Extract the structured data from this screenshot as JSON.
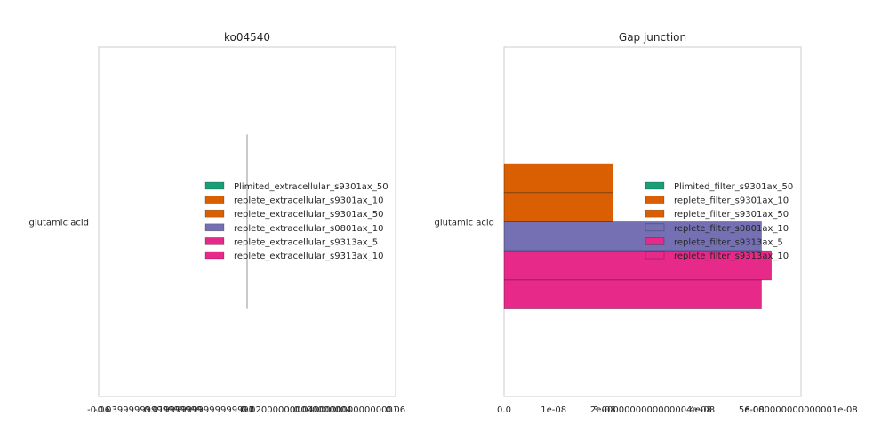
{
  "chart_data": [
    {
      "type": "bar",
      "orientation": "horizontal",
      "title": "ko04540",
      "xlabel": "",
      "ylabel": "",
      "categories": [
        "glutamic acid"
      ],
      "xlim": [
        -0.06,
        0.06
      ],
      "x_tick_labels": [
        "-0.06",
        "-0.03999999999999999",
        "-0.019999999999999997",
        "0.0",
        "0.020000000000000004",
        "0.04000000000000001",
        "0.06"
      ],
      "grid": false,
      "legend_position": "center-right",
      "series": [
        {
          "name": "Plimited_extracellular_s9301ax_50",
          "values": [
            0
          ],
          "color": "#1b9e77"
        },
        {
          "name": "replete_extracellular_s9301ax_10",
          "values": [
            0
          ],
          "color": "#d95f02"
        },
        {
          "name": "replete_extracellular_s9301ax_50",
          "values": [
            0
          ],
          "color": "#d95f02"
        },
        {
          "name": "replete_extracellular_s0801ax_10",
          "values": [
            0
          ],
          "color": "#7570b3"
        },
        {
          "name": "replete_extracellular_s9313ax_5",
          "values": [
            0
          ],
          "color": "#e7298a"
        },
        {
          "name": "replete_extracellular_s9313ax_10",
          "values": [
            0
          ],
          "color": "#e7298a"
        }
      ]
    },
    {
      "type": "bar",
      "orientation": "horizontal",
      "title": "Gap junction",
      "xlabel": "",
      "ylabel": "",
      "categories": [
        "glutamic acid"
      ],
      "xlim": [
        0,
        6e-08
      ],
      "x_tick_labels": [
        "0.0",
        "1e-08",
        "2e-08",
        "3.0000000000000004e-08",
        "4e-08",
        "5e-08",
        "6.000000000000001e-08"
      ],
      "grid": false,
      "legend_position": "center-right",
      "series": [
        {
          "name": "Plimited_filter_s9301ax_50",
          "values": [
            0
          ],
          "color": "#1b9e77"
        },
        {
          "name": "replete_filter_s9301ax_10",
          "values": [
            2.2e-08
          ],
          "color": "#d95f02"
        },
        {
          "name": "replete_filter_s9301ax_50",
          "values": [
            2.2e-08
          ],
          "color": "#d95f02"
        },
        {
          "name": "replete_filter_s0801ax_10",
          "values": [
            5.2e-08
          ],
          "color": "#7570b3"
        },
        {
          "name": "replete_filter_s9313ax_5",
          "values": [
            5.4e-08
          ],
          "color": "#e7298a"
        },
        {
          "name": "replete_filter_s9313ax_10",
          "values": [
            5.2e-08
          ],
          "color": "#e7298a"
        }
      ]
    }
  ]
}
